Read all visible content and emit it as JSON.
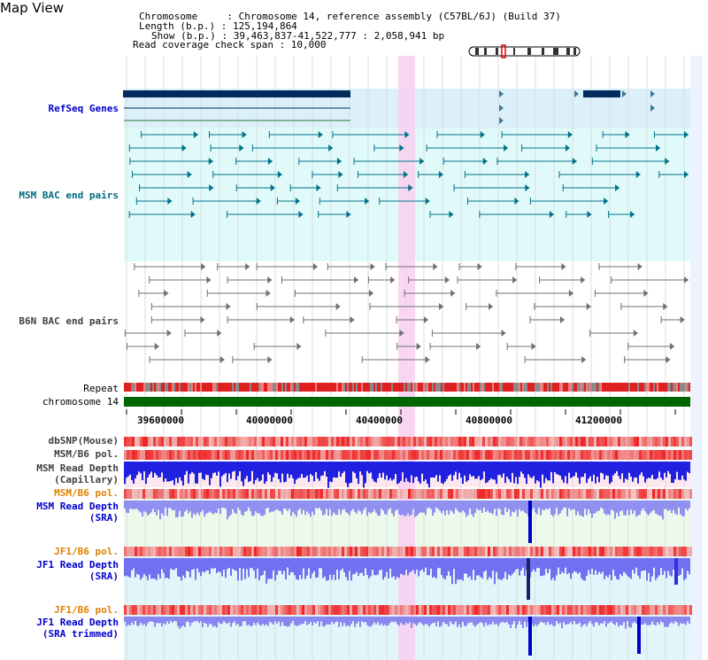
{
  "page": {
    "title": "Map View"
  },
  "info": {
    "chromosome": "Chromosome     : Chromosome 14, reference assembly (C57BL/6J) (Build 37)",
    "length": "Length (b.p.) : 125,194,864",
    "show": "Show (b.p.) : 39,463,837-41,522,777 : 2,058,941 bp",
    "coverage": "Read coverage check span : 10,000"
  },
  "tracks": {
    "refseq": "RefSeq Genes",
    "msm_bac": "MSM BAC end pairs",
    "b6n_bac": "B6N BAC end pairs",
    "repeat": "Repeat",
    "chromosome": "chromosome 14",
    "dbsnp": "dbSNP(Mouse)",
    "msm_b6_pol_1": "MSM/B6 pol.",
    "msm_read_depth_cap_1": "MSM Read Depth",
    "msm_read_depth_cap_2": "(Capillary)",
    "msm_b6_pol_2": "MSM/B6 pol.",
    "msm_read_depth_sra_1": "MSM Read Depth",
    "msm_read_depth_sra_2": "(SRA)",
    "jf1_b6_pol_1": "JF1/B6 pol.",
    "jf1_read_depth_1": "JF1 Read Depth",
    "jf1_read_depth_2": "(SRA)",
    "jf1_b6_pol_2": "JF1/B6 pol.",
    "jf1_read_depth_trim_1": "JF1 Read Depth",
    "jf1_read_depth_trim_2": "(SRA trimmed)"
  },
  "axis": {
    "ticks": [
      "39600000",
      "40000000",
      "40400000",
      "40800000",
      "41200000"
    ]
  },
  "colors": {
    "refseq_label": "#0000cc",
    "msm_label": "#006a80",
    "b6n_label": "#404040",
    "pol_orange": "#e08000",
    "depth_blue": "#0000cc",
    "gene_navy": "#002b5c",
    "chromosome_green": "#006600",
    "highlight_pink": "#f8d0f0"
  }
}
